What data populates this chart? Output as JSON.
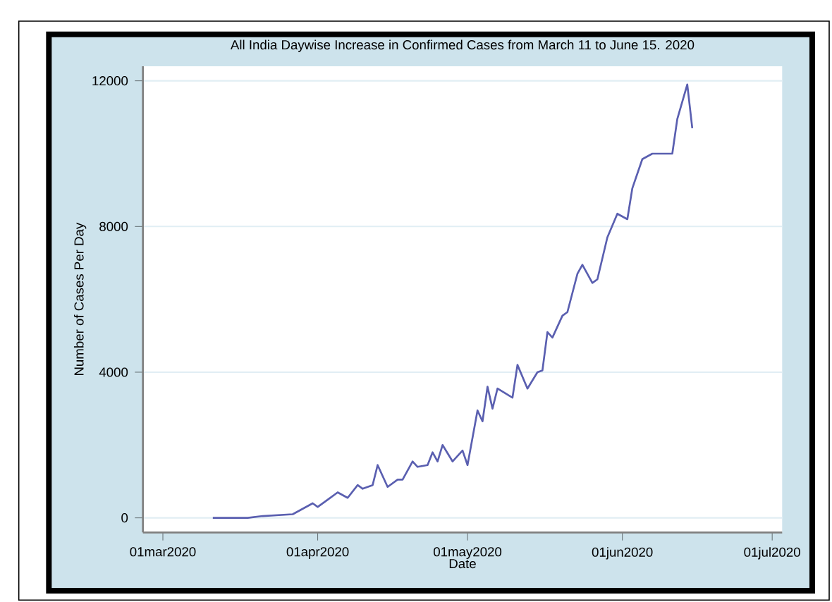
{
  "chart_data": {
    "type": "line",
    "title": "All India Daywise Increase in Confirmed Cases from March 11 to June 15. 2020",
    "xlabel": "Date",
    "ylabel": "Number of Cases Per Day",
    "x": [
      "2020-03-11",
      "2020-03-18",
      "2020-03-21",
      "2020-03-27",
      "2020-03-29",
      "2020-03-31",
      "2020-04-01",
      "2020-04-03",
      "2020-04-05",
      "2020-04-07",
      "2020-04-09",
      "2020-04-10",
      "2020-04-12",
      "2020-04-13",
      "2020-04-15",
      "2020-04-17",
      "2020-04-18",
      "2020-04-20",
      "2020-04-21",
      "2020-04-23",
      "2020-04-24",
      "2020-04-25",
      "2020-04-26",
      "2020-04-28",
      "2020-04-30",
      "2020-05-01",
      "2020-05-03",
      "2020-05-04",
      "2020-05-05",
      "2020-05-06",
      "2020-05-07",
      "2020-05-10",
      "2020-05-11",
      "2020-05-13",
      "2020-05-15",
      "2020-05-16",
      "2020-05-17",
      "2020-05-18",
      "2020-05-20",
      "2020-05-21",
      "2020-05-23",
      "2020-05-24",
      "2020-05-26",
      "2020-05-27",
      "2020-05-29",
      "2020-05-31",
      "2020-06-02",
      "2020-06-03",
      "2020-06-05",
      "2020-06-07",
      "2020-06-11",
      "2020-06-12",
      "2020-06-14",
      "2020-06-15"
    ],
    "series": [
      {
        "color": "#5a5fb0",
        "values": [
          0,
          0,
          50,
          100,
          250,
          400,
          300,
          500,
          700,
          550,
          900,
          800,
          900,
          1450,
          850,
          1050,
          1050,
          1550,
          1400,
          1450,
          1800,
          1550,
          2000,
          1550,
          1850,
          1450,
          2950,
          2650,
          3600,
          3000,
          3550,
          3300,
          4200,
          3550,
          4000,
          4050,
          5100,
          4950,
          5550,
          5650,
          6700,
          6950,
          6450,
          6550,
          7700,
          8350,
          8200,
          9050,
          9850,
          10000,
          10000,
          10950,
          11900,
          10700
        ]
      }
    ],
    "xlim": [
      "2020-02-26",
      "2020-07-03"
    ],
    "xticks": [
      {
        "value": "2020-03-01",
        "label": "01mar2020"
      },
      {
        "value": "2020-04-01",
        "label": "01apr2020"
      },
      {
        "value": "2020-05-01",
        "label": "01may2020"
      },
      {
        "value": "2020-06-01",
        "label": "01jun2020"
      },
      {
        "value": "2020-07-01",
        "label": "01jul2020"
      }
    ],
    "ylim": [
      -400,
      12400
    ],
    "yticks": [
      0,
      4000,
      8000,
      12000
    ],
    "grid": "y",
    "marker": "none",
    "line_style": "solid"
  }
}
